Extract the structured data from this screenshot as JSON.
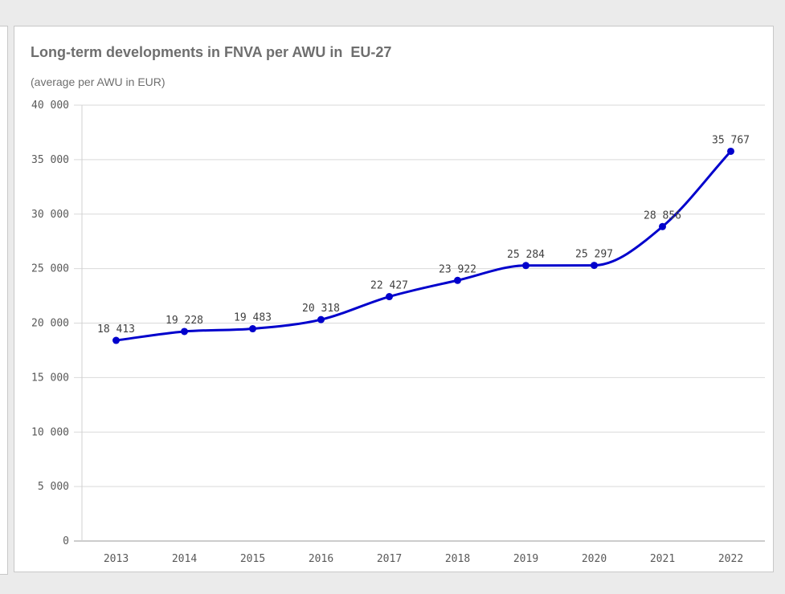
{
  "chart_data": {
    "type": "line",
    "title": "Long-term developments in FNVA per AWU in  EU-27",
    "subtitle": "(average per AWU in EUR)",
    "xlabel": "",
    "ylabel": "",
    "categories": [
      "2013",
      "2014",
      "2015",
      "2016",
      "2017",
      "2018",
      "2019",
      "2020",
      "2021",
      "2022"
    ],
    "series": [
      {
        "name": "FNVA per AWU",
        "values": [
          18413,
          19228,
          19483,
          20318,
          22427,
          23922,
          25284,
          25297,
          28856,
          35767
        ],
        "labels": [
          "18 413",
          "19 228",
          "19 483",
          "20 318",
          "22 427",
          "23 922",
          "25 284",
          "25 297",
          "28 856",
          "35 767"
        ],
        "color": "#0000cc"
      }
    ],
    "ylim": [
      0,
      40000
    ],
    "yticks": [
      0,
      5000,
      10000,
      15000,
      20000,
      25000,
      30000,
      35000,
      40000
    ],
    "ytick_labels": [
      "0",
      "5 000",
      "10 000",
      "15 000",
      "20 000",
      "25 000",
      "30 000",
      "35 000",
      "40 000"
    ],
    "grid": true,
    "legend": "none"
  }
}
